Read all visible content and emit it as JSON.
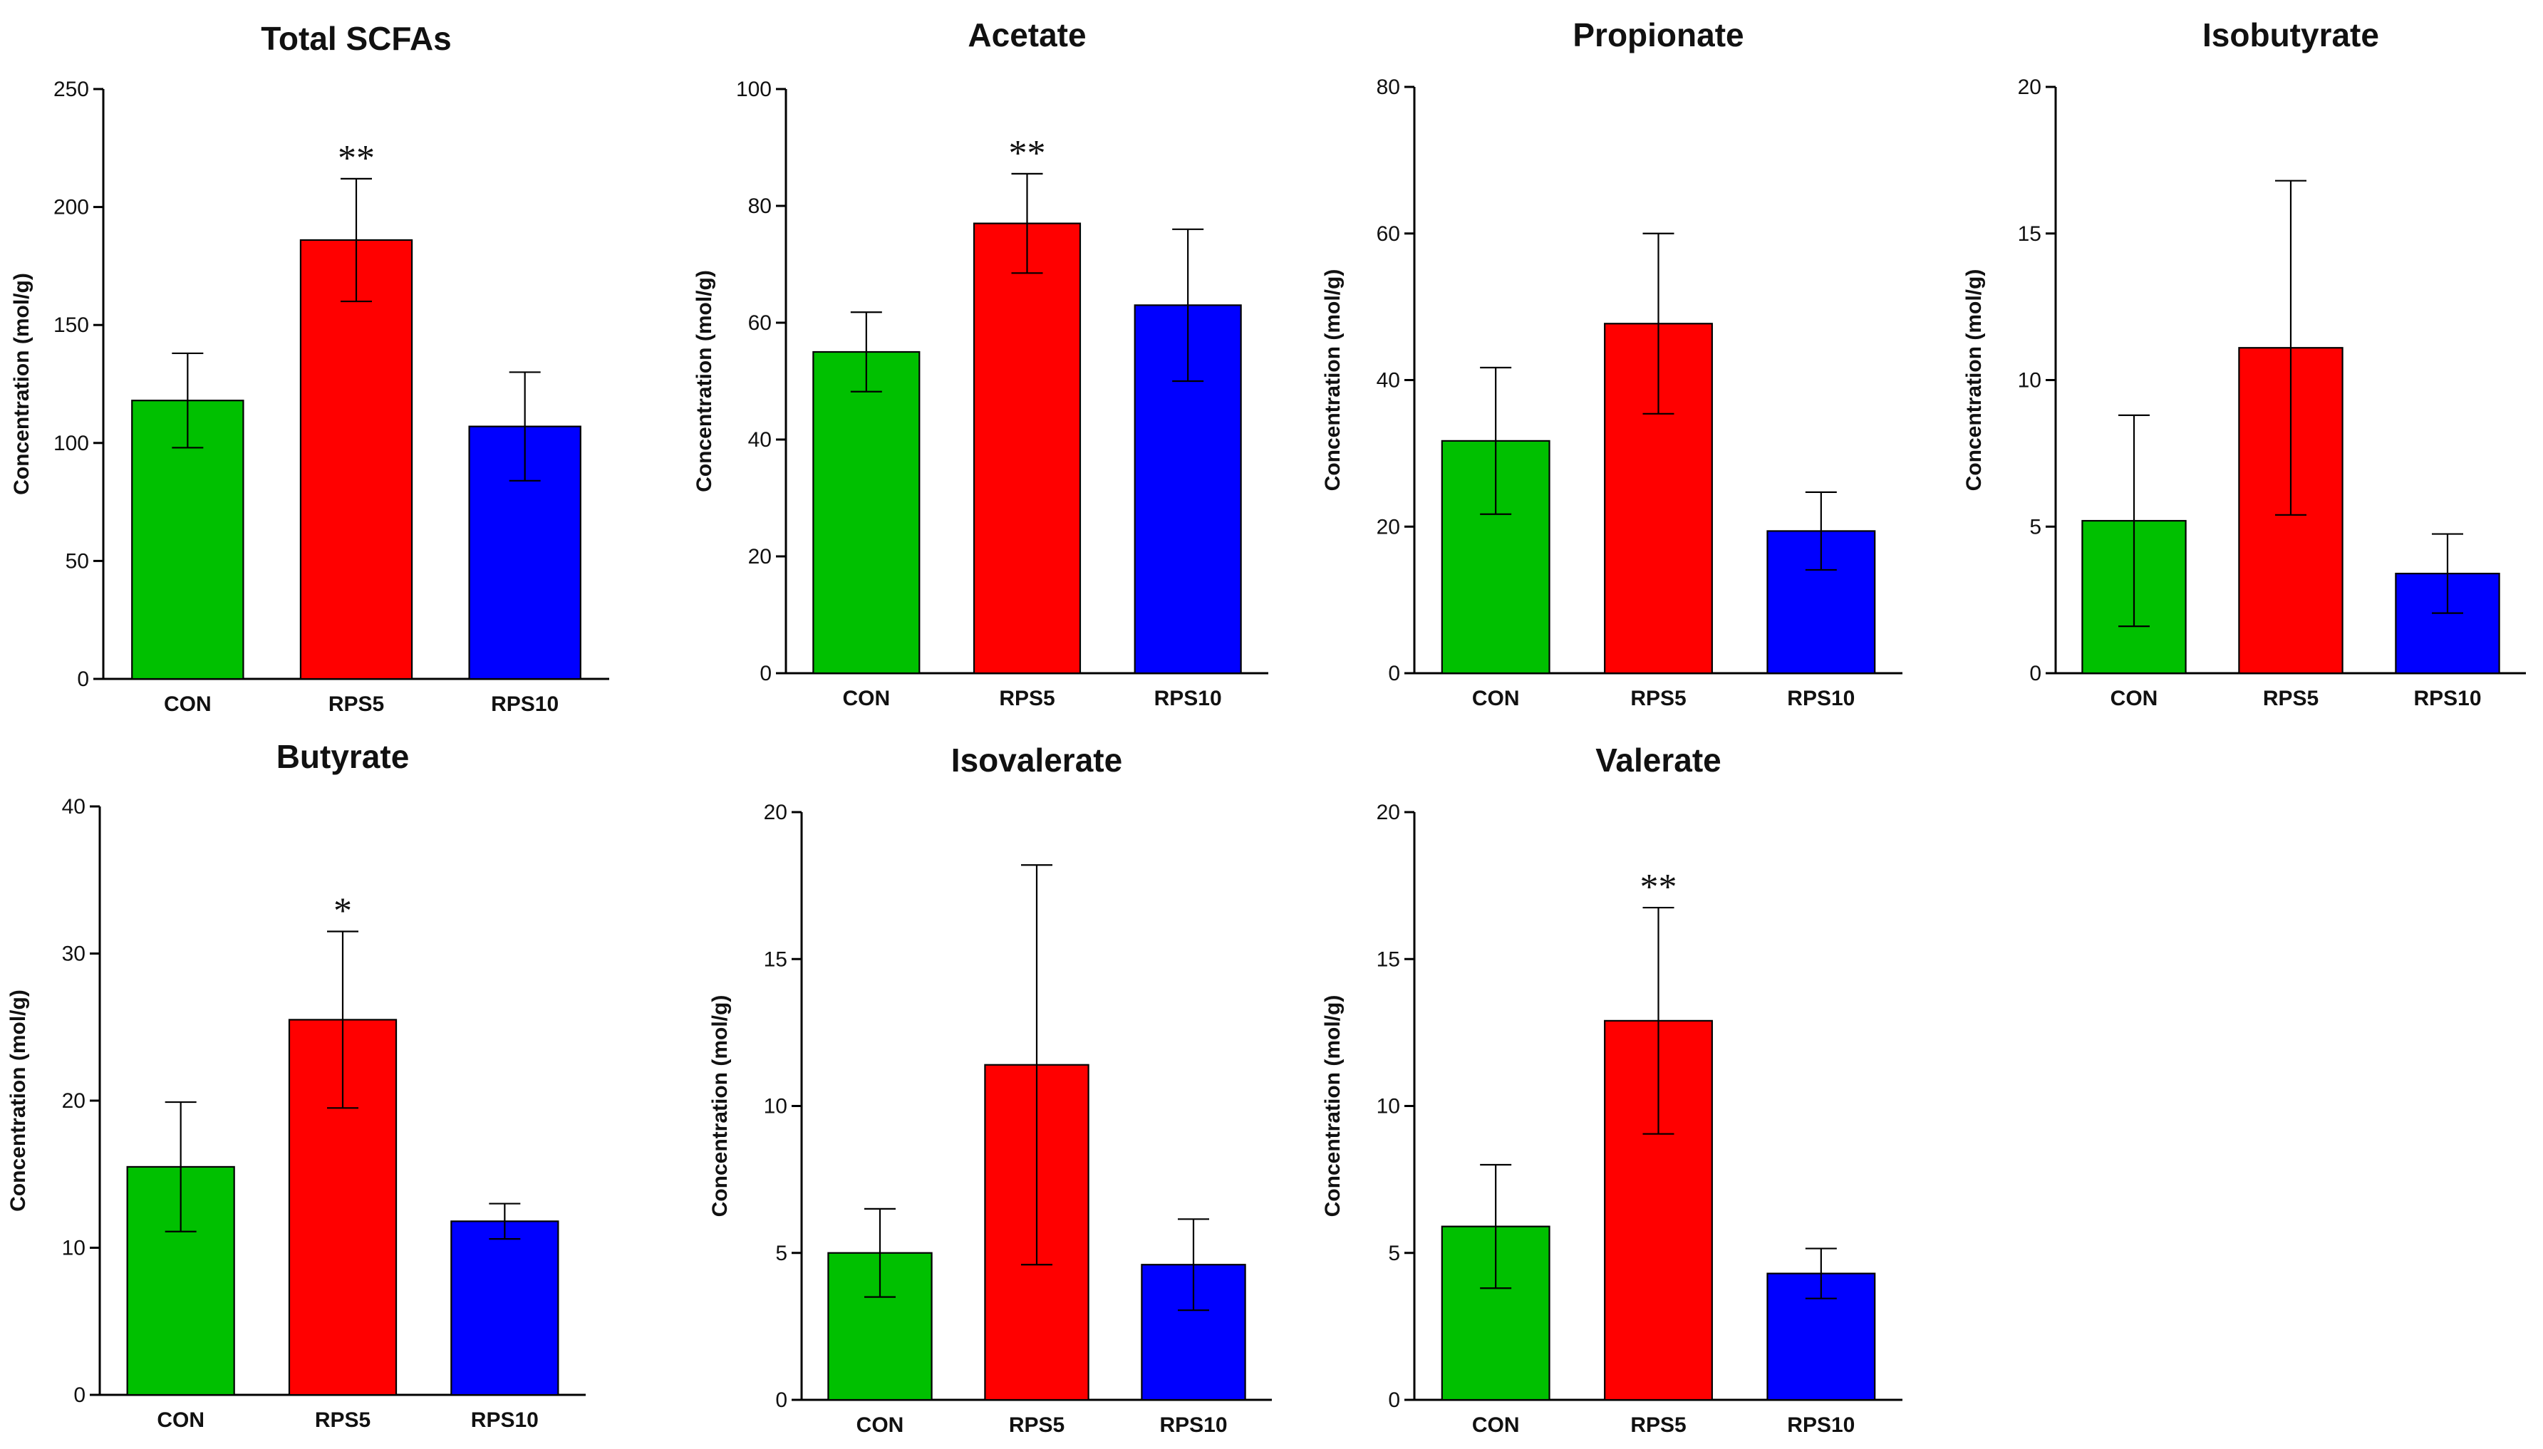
{
  "chart_data": [
    {
      "type": "bar",
      "title": "Total SCFAs",
      "ylabel": "Concentration (mol/g)",
      "ylim": [
        0,
        250
      ],
      "yticks": [
        0,
        50,
        100,
        150,
        200,
        250
      ],
      "categories": [
        "CON",
        "RPS5",
        "RPS10"
      ],
      "values": [
        118,
        186,
        107
      ],
      "errors": [
        20,
        26,
        23
      ],
      "significance": [
        "",
        "**",
        ""
      ],
      "colors": [
        "#00c000",
        "#ff0000",
        "#0000ff"
      ]
    },
    {
      "type": "bar",
      "title": "Acetate",
      "ylabel": "Concentration (mol/g)",
      "ylim": [
        0,
        100
      ],
      "yticks": [
        0,
        20,
        40,
        60,
        80,
        100
      ],
      "categories": [
        "CON",
        "RPS5",
        "RPS10"
      ],
      "values": [
        55,
        77,
        63
      ],
      "errors": [
        6.8,
        8.5,
        13
      ],
      "significance": [
        "",
        "**",
        ""
      ],
      "colors": [
        "#00c000",
        "#ff0000",
        "#0000ff"
      ]
    },
    {
      "type": "bar",
      "title": "Propionate",
      "ylabel": "Concentration (mol/g)",
      "ylim": [
        0,
        80
      ],
      "yticks": [
        0,
        20,
        40,
        60,
        80
      ],
      "categories": [
        "CON",
        "RPS5",
        "RPS10"
      ],
      "values": [
        31.7,
        47.7,
        19.4
      ],
      "errors": [
        10,
        12.3,
        5.3
      ],
      "significance": [
        "",
        "",
        ""
      ],
      "colors": [
        "#00c000",
        "#ff0000",
        "#0000ff"
      ]
    },
    {
      "type": "bar",
      "title": "Isobutyrate",
      "ylabel": "Concentration (mol/g)",
      "ylim": [
        0,
        20
      ],
      "yticks": [
        0,
        5,
        10,
        15,
        20
      ],
      "categories": [
        "CON",
        "RPS5",
        "RPS10"
      ],
      "values": [
        5.2,
        11.1,
        3.4
      ],
      "errors": [
        3.6,
        5.7,
        1.35
      ],
      "significance": [
        "",
        "",
        ""
      ],
      "colors": [
        "#00c000",
        "#ff0000",
        "#0000ff"
      ]
    },
    {
      "type": "bar",
      "title": "Butyrate",
      "ylabel": "Concentration (mol/g)",
      "ylim": [
        0,
        40
      ],
      "yticks": [
        0,
        10,
        20,
        30,
        40
      ],
      "categories": [
        "CON",
        "RPS5",
        "RPS10"
      ],
      "values": [
        15.5,
        25.5,
        11.8
      ],
      "errors": [
        4.4,
        6,
        1.2
      ],
      "significance": [
        "",
        "*",
        ""
      ],
      "colors": [
        "#00c000",
        "#ff0000",
        "#0000ff"
      ]
    },
    {
      "type": "bar",
      "title": "Isovalerate",
      "ylabel": "Concentration (mol/g)",
      "ylim": [
        0,
        20
      ],
      "yticks": [
        0,
        5,
        10,
        15,
        20
      ],
      "categories": [
        "CON",
        "RPS5",
        "RPS10"
      ],
      "values": [
        5,
        11.4,
        4.6
      ],
      "errors": [
        1.5,
        6.8,
        1.55
      ],
      "significance": [
        "",
        "",
        ""
      ],
      "colors": [
        "#00c000",
        "#ff0000",
        "#0000ff"
      ]
    },
    {
      "type": "bar",
      "title": "Valerate",
      "ylabel": "Concentration (mol/g)",
      "ylim": [
        0,
        20
      ],
      "yticks": [
        0,
        5,
        10,
        15,
        20
      ],
      "categories": [
        "CON",
        "RPS5",
        "RPS10"
      ],
      "values": [
        5.9,
        12.9,
        4.3
      ],
      "errors": [
        2.1,
        3.85,
        0.85
      ],
      "significance": [
        "",
        "**",
        ""
      ],
      "colors": [
        "#00c000",
        "#ff0000",
        "#0000ff"
      ]
    }
  ]
}
